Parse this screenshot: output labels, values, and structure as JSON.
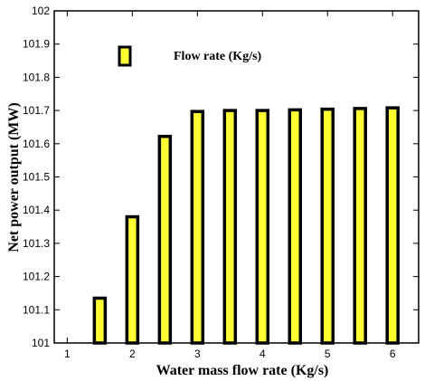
{
  "chart_data": {
    "type": "bar",
    "title": "",
    "xlabel": "Water mass flow rate (Kg/s)",
    "ylabel": "Net power output  (MW)",
    "xlim": [
      0.8,
      6.4
    ],
    "ylim": [
      101,
      102
    ],
    "xticks": [
      1,
      2,
      3,
      4,
      5,
      6
    ],
    "yticks": [
      101,
      101.1,
      101.2,
      101.3,
      101.4,
      101.5,
      101.6,
      101.7,
      101.8,
      101.9,
      102
    ],
    "ytick_labels": [
      "101",
      "101.1",
      "101.2",
      "101.3",
      "101.4",
      "101.5",
      "101.6",
      "101.7",
      "101.8",
      "101.9",
      "102"
    ],
    "xtick_labels": [
      "1",
      "2",
      "3",
      "4",
      "5",
      "6"
    ],
    "grid": false,
    "legend_position": "top-left",
    "bar_fill": "#ffff33",
    "bar_edge": "#000000",
    "series": [
      {
        "name": "Flow rate (Kg/s)",
        "x": [
          1.5,
          2.0,
          2.5,
          3.0,
          3.5,
          4.0,
          4.5,
          5.0,
          5.5,
          6.0
        ],
        "values": [
          101.135,
          101.38,
          101.622,
          101.697,
          101.7,
          101.7,
          101.702,
          101.704,
          101.706,
          101.708
        ]
      }
    ]
  }
}
